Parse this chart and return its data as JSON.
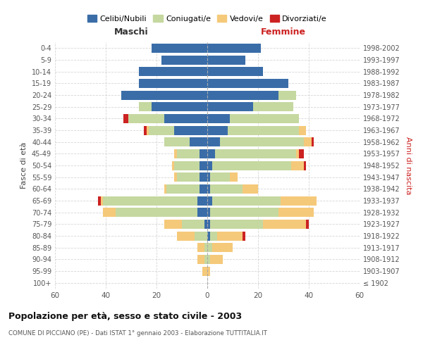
{
  "age_groups": [
    "100+",
    "95-99",
    "90-94",
    "85-89",
    "80-84",
    "75-79",
    "70-74",
    "65-69",
    "60-64",
    "55-59",
    "50-54",
    "45-49",
    "40-44",
    "35-39",
    "30-34",
    "25-29",
    "20-24",
    "15-19",
    "10-14",
    "5-9",
    "0-4"
  ],
  "birth_years": [
    "≤ 1902",
    "1903-1907",
    "1908-1912",
    "1913-1917",
    "1918-1922",
    "1923-1927",
    "1928-1932",
    "1933-1937",
    "1938-1942",
    "1943-1947",
    "1948-1952",
    "1953-1957",
    "1958-1962",
    "1963-1967",
    "1968-1972",
    "1973-1977",
    "1978-1982",
    "1983-1987",
    "1988-1992",
    "1993-1997",
    "1998-2002"
  ],
  "colors": {
    "celibi": "#3a6da8",
    "coniugati": "#c5d8a0",
    "vedovi": "#f5c97a",
    "divorziati": "#cc2222"
  },
  "maschi": {
    "celibi": [
      0,
      0,
      0,
      0,
      0,
      1,
      4,
      4,
      3,
      3,
      3,
      3,
      7,
      13,
      17,
      22,
      34,
      27,
      27,
      18,
      22
    ],
    "coniugati": [
      0,
      0,
      1,
      1,
      5,
      9,
      32,
      37,
      13,
      9,
      10,
      9,
      10,
      10,
      14,
      5,
      0,
      0,
      0,
      0,
      0
    ],
    "vedovi": [
      0,
      2,
      3,
      3,
      7,
      7,
      5,
      1,
      1,
      1,
      1,
      1,
      0,
      1,
      0,
      0,
      0,
      0,
      0,
      0,
      0
    ],
    "divorziati": [
      0,
      0,
      0,
      0,
      0,
      0,
      0,
      1,
      0,
      0,
      0,
      0,
      0,
      1,
      2,
      0,
      0,
      0,
      0,
      0,
      0
    ]
  },
  "femmine": {
    "celibi": [
      0,
      0,
      0,
      0,
      1,
      1,
      1,
      2,
      1,
      1,
      2,
      3,
      5,
      8,
      9,
      18,
      28,
      32,
      22,
      15,
      21
    ],
    "coniugati": [
      0,
      0,
      1,
      2,
      3,
      21,
      27,
      27,
      13,
      8,
      31,
      32,
      33,
      28,
      27,
      16,
      7,
      0,
      0,
      0,
      0
    ],
    "vedovi": [
      0,
      1,
      5,
      8,
      10,
      17,
      14,
      14,
      6,
      3,
      5,
      1,
      3,
      3,
      0,
      0,
      0,
      0,
      0,
      0,
      0
    ],
    "divorziati": [
      0,
      0,
      0,
      0,
      1,
      1,
      0,
      0,
      0,
      0,
      1,
      2,
      1,
      0,
      0,
      0,
      0,
      0,
      0,
      0,
      0
    ]
  },
  "title": "Popolazione per età, sesso e stato civile - 2003",
  "subtitle": "COMUNE DI PICCIANO (PE) - Dati ISTAT 1° gennaio 2003 - Elaborazione TUTTITALIA.IT",
  "ylabel_left": "Fasce di età",
  "ylabel_right": "Anni di nascita",
  "xlabel_left": "Maschi",
  "xlabel_right": "Femmine",
  "xlim": 60,
  "bg_color": "#ffffff",
  "grid_color": "#cccccc",
  "legend_labels": [
    "Celibi/Nubili",
    "Coniugati/e",
    "Vedovi/e",
    "Divorziati/e"
  ]
}
